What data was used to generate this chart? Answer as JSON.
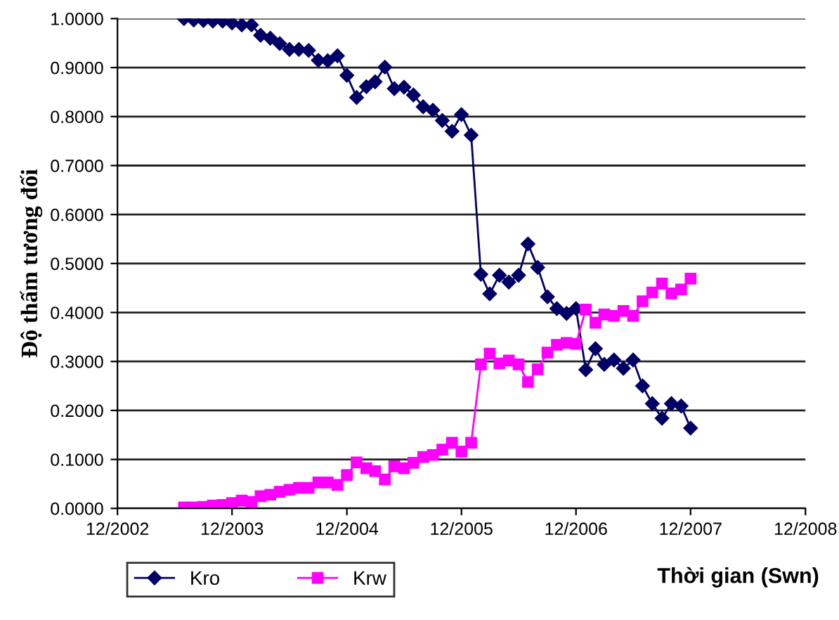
{
  "chart_data": {
    "type": "line",
    "xlabel": "Thời gian (Swn)",
    "ylabel": "Độ thấm tương đối",
    "x": [
      "2003-07",
      "2003-08",
      "2003-09",
      "2003-10",
      "2003-11",
      "2003-12",
      "2004-01",
      "2004-02",
      "2004-03",
      "2004-04",
      "2004-05",
      "2004-06",
      "2004-07",
      "2004-08",
      "2004-09",
      "2004-10",
      "2004-11",
      "2004-12",
      "2005-01",
      "2005-02",
      "2005-03",
      "2005-04",
      "2005-05",
      "2005-06",
      "2005-07",
      "2005-08",
      "2005-09",
      "2005-10",
      "2005-11",
      "2005-12",
      "2006-01",
      "2006-02",
      "2006-03",
      "2006-04",
      "2006-05",
      "2006-06",
      "2006-07",
      "2006-08",
      "2006-09",
      "2006-10",
      "2006-11",
      "2006-12",
      "2007-01",
      "2007-02",
      "2007-03",
      "2007-04",
      "2007-05",
      "2007-06",
      "2007-07",
      "2007-08",
      "2007-09",
      "2007-10",
      "2007-11",
      "2007-12"
    ],
    "series": [
      {
        "name": "Kro",
        "color": "#000066",
        "marker": "diamond",
        "values": [
          1.0,
          0.997,
          0.996,
          0.995,
          0.995,
          0.991,
          0.987,
          0.987,
          0.966,
          0.96,
          0.949,
          0.937,
          0.937,
          0.935,
          0.915,
          0.914,
          0.924,
          0.884,
          0.839,
          0.861,
          0.871,
          0.901,
          0.857,
          0.86,
          0.844,
          0.82,
          0.813,
          0.792,
          0.77,
          0.804,
          0.762,
          0.478,
          0.438,
          0.476,
          0.462,
          0.476,
          0.54,
          0.492,
          0.432,
          0.408,
          0.398,
          0.408,
          0.283,
          0.326,
          0.294,
          0.303,
          0.286,
          0.303,
          0.25,
          0.214,
          0.184,
          0.214,
          0.209,
          0.164
        ]
      },
      {
        "name": "Krw",
        "color": "#ff00ff",
        "marker": "square",
        "values": [
          0.002,
          0.002,
          0.003,
          0.006,
          0.007,
          0.011,
          0.016,
          0.013,
          0.025,
          0.028,
          0.034,
          0.038,
          0.042,
          0.042,
          0.053,
          0.053,
          0.048,
          0.068,
          0.094,
          0.082,
          0.076,
          0.059,
          0.086,
          0.082,
          0.093,
          0.105,
          0.109,
          0.12,
          0.134,
          0.116,
          0.134,
          0.294,
          0.316,
          0.296,
          0.302,
          0.294,
          0.258,
          0.284,
          0.318,
          0.334,
          0.338,
          0.336,
          0.406,
          0.379,
          0.396,
          0.393,
          0.403,
          0.393,
          0.423,
          0.441,
          0.459,
          0.439,
          0.447,
          0.469
        ]
      }
    ],
    "xlim": [
      "2002-12",
      "2008-12"
    ],
    "xticks": [
      {
        "value": "2002-12",
        "label": "12/2002"
      },
      {
        "value": "2003-12",
        "label": "12/2003"
      },
      {
        "value": "2004-12",
        "label": "12/2004"
      },
      {
        "value": "2005-12",
        "label": "12/2005"
      },
      {
        "value": "2006-12",
        "label": "12/2006"
      },
      {
        "value": "2007-12",
        "label": "12/2007"
      },
      {
        "value": "2008-12",
        "label": "12/2008"
      }
    ],
    "ylim": [
      0,
      1
    ],
    "yticks": [
      {
        "value": 0,
        "label": "0.0000"
      },
      {
        "value": 0.1,
        "label": "0.1000"
      },
      {
        "value": 0.2,
        "label": "0.2000"
      },
      {
        "value": 0.3,
        "label": "0.3000"
      },
      {
        "value": 0.4,
        "label": "0.4000"
      },
      {
        "value": 0.5,
        "label": "0.5000"
      },
      {
        "value": 0.6,
        "label": "0.6000"
      },
      {
        "value": 0.7,
        "label": "0.7000"
      },
      {
        "value": 0.8,
        "label": "0.8000"
      },
      {
        "value": 0.9,
        "label": "0.9000"
      },
      {
        "value": 1,
        "label": "1.0000"
      }
    ],
    "grid": "y",
    "legend": "bottom left",
    "line_style": "solid"
  }
}
